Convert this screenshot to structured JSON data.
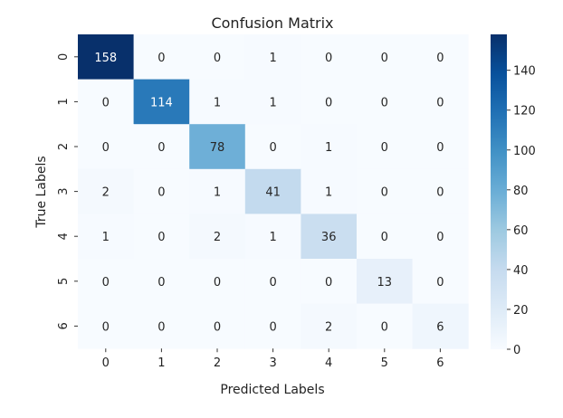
{
  "chart_data": {
    "type": "heatmap",
    "title": "Confusion Matrix",
    "xlabel": "Predicted Labels",
    "ylabel": "True Labels",
    "x_categories": [
      "0",
      "1",
      "2",
      "3",
      "4",
      "5",
      "6"
    ],
    "y_categories": [
      "0",
      "1",
      "2",
      "3",
      "4",
      "5",
      "6"
    ],
    "values": [
      [
        158,
        0,
        0,
        1,
        0,
        0,
        0
      ],
      [
        0,
        114,
        1,
        1,
        0,
        0,
        0
      ],
      [
        0,
        0,
        78,
        0,
        1,
        0,
        0
      ],
      [
        2,
        0,
        1,
        41,
        1,
        0,
        0
      ],
      [
        1,
        0,
        2,
        1,
        36,
        0,
        0
      ],
      [
        0,
        0,
        0,
        0,
        0,
        13,
        0
      ],
      [
        0,
        0,
        0,
        0,
        2,
        0,
        6
      ]
    ],
    "colormap": "Blues",
    "color_low": "#f7fbff",
    "color_high": "#08306b",
    "vmin": 0,
    "vmax": 158,
    "colorbar_ticks": [
      "0",
      "20",
      "40",
      "60",
      "80",
      "100",
      "120",
      "140"
    ],
    "colorbar_tick_values": [
      0,
      20,
      40,
      60,
      80,
      100,
      120,
      140
    ]
  }
}
